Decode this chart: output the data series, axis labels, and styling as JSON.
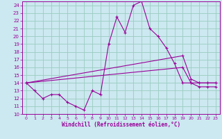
{
  "xlabel": "Windchill (Refroidissement éolien,°C)",
  "background_color": "#cce8f0",
  "grid_color": "#99ccc0",
  "line_color": "#990099",
  "xlim": [
    -0.5,
    23.5
  ],
  "ylim": [
    10,
    24.5
  ],
  "yticks": [
    10,
    11,
    12,
    13,
    14,
    15,
    16,
    17,
    18,
    19,
    20,
    21,
    22,
    23,
    24
  ],
  "xticks": [
    0,
    1,
    2,
    3,
    4,
    5,
    6,
    7,
    8,
    9,
    10,
    11,
    12,
    13,
    14,
    15,
    16,
    17,
    18,
    19,
    20,
    21,
    22,
    23
  ],
  "series_main": {
    "x": [
      0,
      1,
      2,
      3,
      4,
      5,
      6,
      7,
      8,
      9,
      10,
      11,
      12,
      13,
      14,
      15,
      16,
      17,
      18,
      19,
      20,
      21,
      22,
      23
    ],
    "y": [
      14,
      13,
      12,
      12.5,
      12.5,
      11.5,
      11,
      10.5,
      13,
      12.5,
      19,
      22.5,
      20.5,
      24,
      24.5,
      21,
      20,
      18.5,
      16.5,
      14,
      14,
      14,
      14,
      14
    ]
  },
  "series_line1": {
    "x": [
      0,
      19,
      20,
      21,
      22,
      23
    ],
    "y": [
      14,
      17.5,
      14.5,
      14,
      14,
      14
    ]
  },
  "series_line2": {
    "x": [
      0,
      19,
      20,
      21,
      22,
      23
    ],
    "y": [
      14,
      16,
      14,
      13.5,
      13.5,
      13.5
    ]
  }
}
